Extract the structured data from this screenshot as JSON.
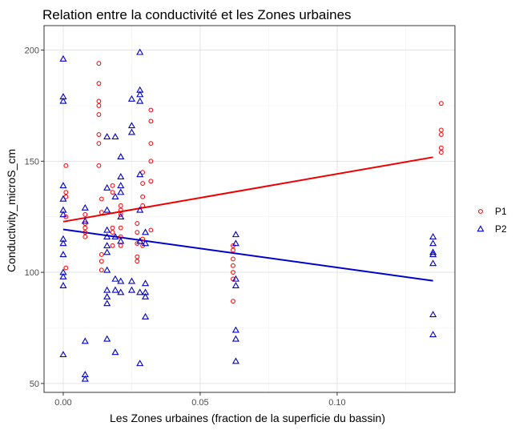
{
  "chart_data": {
    "type": "scatter",
    "title": "Relation entre la conductivité et les Zones urbaines",
    "xlabel": "Les Zones urbaines (fraction de la superficie du bassin)",
    "ylabel": "Conductivity_microS_cm",
    "xlim": [
      -0.007,
      0.143
    ],
    "ylim": [
      46,
      211
    ],
    "xticks": [
      0.0,
      0.05,
      0.1
    ],
    "xtick_labels": [
      "0.00",
      "0.05",
      "0.10"
    ],
    "yticks": [
      50,
      100,
      150,
      200
    ],
    "ytick_labels": [
      "50",
      "100",
      "150",
      "200"
    ],
    "grid": true,
    "legend_position": "right",
    "colors": {
      "P1": "#ee0000",
      "P2": "#0000cc"
    },
    "series": [
      {
        "name": "P1",
        "marker": "circle",
        "trend": {
          "x": [
            0.0,
            0.135
          ],
          "y": [
            122.8,
            151.8
          ]
        },
        "points": [
          [
            0.001,
            148
          ],
          [
            0.001,
            136
          ],
          [
            0.001,
            134
          ],
          [
            0.001,
            125
          ],
          [
            0.001,
            102
          ],
          [
            0.008,
            126
          ],
          [
            0.008,
            122
          ],
          [
            0.008,
            120
          ],
          [
            0.008,
            118
          ],
          [
            0.008,
            116
          ],
          [
            0.013,
            194
          ],
          [
            0.013,
            185
          ],
          [
            0.013,
            177
          ],
          [
            0.013,
            175
          ],
          [
            0.013,
            171
          ],
          [
            0.013,
            162
          ],
          [
            0.013,
            158
          ],
          [
            0.013,
            148
          ],
          [
            0.014,
            133
          ],
          [
            0.014,
            127
          ],
          [
            0.014,
            108
          ],
          [
            0.014,
            105
          ],
          [
            0.014,
            101
          ],
          [
            0.018,
            139
          ],
          [
            0.018,
            136
          ],
          [
            0.018,
            120
          ],
          [
            0.018,
            118
          ],
          [
            0.018,
            112
          ],
          [
            0.021,
            130
          ],
          [
            0.021,
            128
          ],
          [
            0.021,
            126
          ],
          [
            0.021,
            120
          ],
          [
            0.021,
            116
          ],
          [
            0.021,
            112
          ],
          [
            0.027,
            122
          ],
          [
            0.027,
            118
          ],
          [
            0.027,
            113
          ],
          [
            0.027,
            107
          ],
          [
            0.027,
            105
          ],
          [
            0.029,
            145
          ],
          [
            0.029,
            140
          ],
          [
            0.029,
            134
          ],
          [
            0.029,
            130
          ],
          [
            0.029,
            115
          ],
          [
            0.029,
            112
          ],
          [
            0.032,
            173
          ],
          [
            0.032,
            168
          ],
          [
            0.032,
            158
          ],
          [
            0.032,
            150
          ],
          [
            0.032,
            141
          ],
          [
            0.032,
            119
          ],
          [
            0.062,
            112
          ],
          [
            0.062,
            110
          ],
          [
            0.062,
            106
          ],
          [
            0.062,
            103
          ],
          [
            0.062,
            100
          ],
          [
            0.062,
            97
          ],
          [
            0.062,
            87
          ],
          [
            0.138,
            176
          ],
          [
            0.138,
            164
          ],
          [
            0.138,
            162
          ],
          [
            0.138,
            156
          ],
          [
            0.138,
            154
          ]
        ]
      },
      {
        "name": "P2",
        "marker": "triangle",
        "trend": {
          "x": [
            0.0,
            0.135
          ],
          "y": [
            119.3,
            96.2
          ]
        },
        "points": [
          [
            0.0,
            196
          ],
          [
            0.0,
            179
          ],
          [
            0.0,
            177
          ],
          [
            0.0,
            139
          ],
          [
            0.0,
            133
          ],
          [
            0.0,
            128
          ],
          [
            0.0,
            126
          ],
          [
            0.0,
            115
          ],
          [
            0.0,
            113
          ],
          [
            0.0,
            108
          ],
          [
            0.0,
            100
          ],
          [
            0.0,
            98
          ],
          [
            0.0,
            94
          ],
          [
            0.0,
            63
          ],
          [
            0.008,
            129
          ],
          [
            0.008,
            123
          ],
          [
            0.008,
            69
          ],
          [
            0.008,
            54
          ],
          [
            0.008,
            52
          ],
          [
            0.016,
            161
          ],
          [
            0.016,
            138
          ],
          [
            0.016,
            128
          ],
          [
            0.016,
            119
          ],
          [
            0.016,
            116
          ],
          [
            0.016,
            112
          ],
          [
            0.016,
            109
          ],
          [
            0.016,
            101
          ],
          [
            0.016,
            92
          ],
          [
            0.016,
            89
          ],
          [
            0.016,
            86
          ],
          [
            0.016,
            70
          ],
          [
            0.019,
            161
          ],
          [
            0.019,
            134
          ],
          [
            0.019,
            116
          ],
          [
            0.019,
            97
          ],
          [
            0.019,
            92
          ],
          [
            0.019,
            64
          ],
          [
            0.021,
            152
          ],
          [
            0.021,
            143
          ],
          [
            0.021,
            139
          ],
          [
            0.021,
            136
          ],
          [
            0.021,
            125
          ],
          [
            0.021,
            114
          ],
          [
            0.021,
            96
          ],
          [
            0.021,
            91
          ],
          [
            0.025,
            178
          ],
          [
            0.025,
            166
          ],
          [
            0.025,
            163
          ],
          [
            0.025,
            96
          ],
          [
            0.025,
            92
          ],
          [
            0.028,
            199
          ],
          [
            0.028,
            182
          ],
          [
            0.028,
            180
          ],
          [
            0.028,
            177
          ],
          [
            0.028,
            144
          ],
          [
            0.028,
            128
          ],
          [
            0.028,
            114
          ],
          [
            0.028,
            91
          ],
          [
            0.028,
            59
          ],
          [
            0.03,
            118
          ],
          [
            0.03,
            113
          ],
          [
            0.03,
            95
          ],
          [
            0.03,
            91
          ],
          [
            0.03,
            89
          ],
          [
            0.03,
            80
          ],
          [
            0.063,
            117
          ],
          [
            0.063,
            113
          ],
          [
            0.063,
            97
          ],
          [
            0.063,
            94
          ],
          [
            0.063,
            74
          ],
          [
            0.063,
            70
          ],
          [
            0.063,
            60
          ],
          [
            0.135,
            116
          ],
          [
            0.135,
            113
          ],
          [
            0.135,
            109
          ],
          [
            0.135,
            108
          ],
          [
            0.135,
            104
          ],
          [
            0.135,
            81
          ],
          [
            0.135,
            72
          ]
        ]
      }
    ]
  }
}
